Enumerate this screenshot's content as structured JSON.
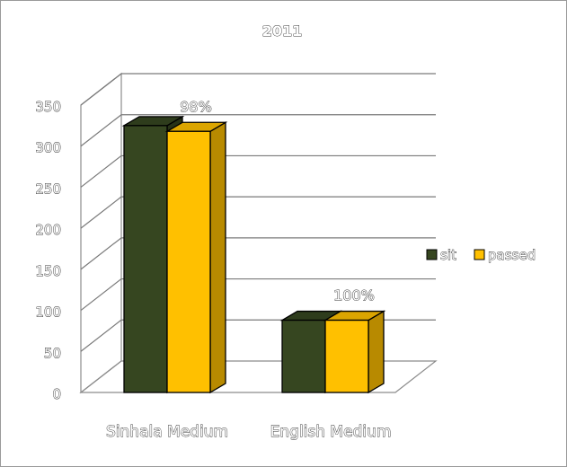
{
  "chart_data": {
    "type": "bar",
    "title": "2011",
    "categories": [
      "Sinhala Medium",
      "English Medium"
    ],
    "series": [
      {
        "name": "sit",
        "values": [
          325,
          88
        ],
        "color": "#364620"
      },
      {
        "name": "passed",
        "values": [
          318,
          88
        ],
        "color": "#FFC000"
      }
    ],
    "data_labels": [
      "98%",
      "100%"
    ],
    "ylim": [
      0,
      350
    ],
    "yticks": [
      0,
      50,
      100,
      150,
      200,
      250,
      300,
      350
    ],
    "xlabel": "",
    "ylabel": "",
    "grid": true,
    "legend_position": "right",
    "style": "3d-clustered-column"
  }
}
